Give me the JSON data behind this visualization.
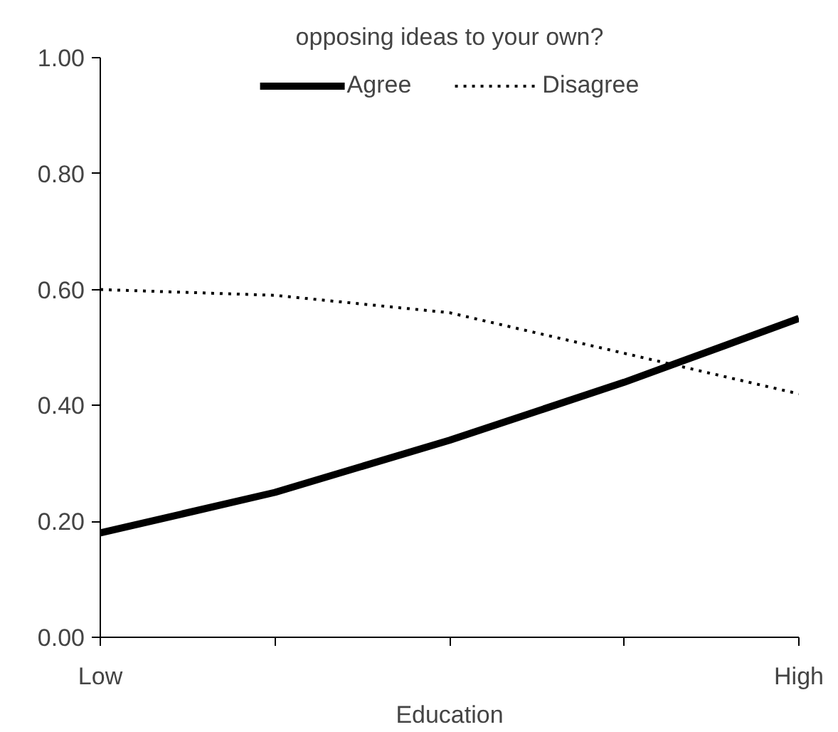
{
  "chart_data": {
    "type": "line",
    "title": "opposing ideas to your own?",
    "xlabel": "Education",
    "categories": [
      "Low",
      null,
      null,
      null,
      "High"
    ],
    "series": [
      {
        "name": "Agree",
        "color": "#000000",
        "values": [
          0.18,
          0.25,
          0.34,
          0.44,
          0.55
        ],
        "line_style": "solid"
      },
      {
        "name": "Disagree",
        "color": "#000000",
        "values": [
          0.6,
          0.59,
          0.56,
          0.49,
          0.42
        ],
        "line_style": "dotted"
      }
    ],
    "ylim": [
      0,
      1
    ],
    "yticks": [
      {
        "value": 0,
        "label": "0.00"
      },
      {
        "value": 0.2,
        "label": "0.20"
      },
      {
        "value": 0.4,
        "label": "0.40"
      },
      {
        "value": 0.6,
        "label": "0.60"
      },
      {
        "value": 0.8,
        "label": "0.80"
      },
      {
        "value": 1,
        "label": "1.00"
      }
    ],
    "grid": false,
    "legend": "top",
    "marker": "none"
  }
}
